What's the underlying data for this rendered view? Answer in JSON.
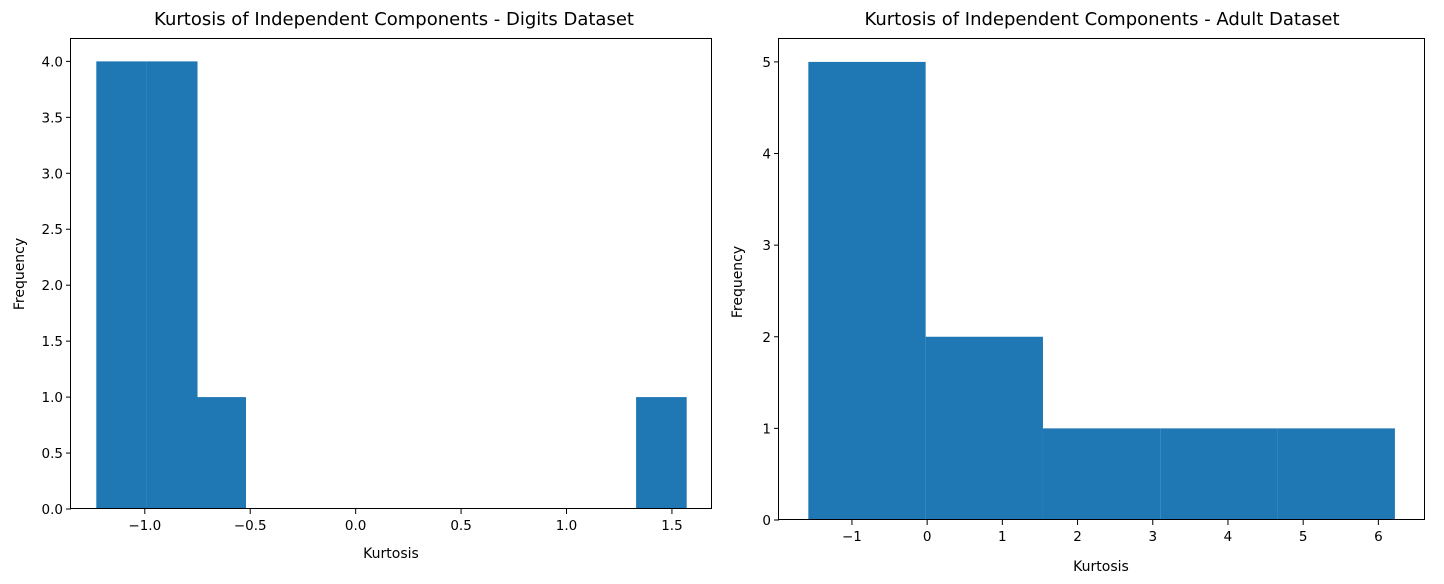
{
  "chart_data": [
    {
      "type": "bar",
      "title": "Kurtosis of Independent Components - Digits Dataset",
      "xlabel": "Kurtosis",
      "ylabel": "Frequency",
      "xlim": [
        -1.35,
        1.69
      ],
      "ylim": [
        0,
        4.2
      ],
      "xticks": [
        {
          "value": -1.0,
          "label": "−1.0"
        },
        {
          "value": -0.5,
          "label": "−0.5"
        },
        {
          "value": 0.0,
          "label": "0.0"
        },
        {
          "value": 0.5,
          "label": "0.5"
        },
        {
          "value": 1.0,
          "label": "1.0"
        },
        {
          "value": 1.5,
          "label": "1.5"
        }
      ],
      "yticks": [
        {
          "value": 0.0,
          "label": "0.0"
        },
        {
          "value": 0.5,
          "label": "0.5"
        },
        {
          "value": 1.0,
          "label": "1.0"
        },
        {
          "value": 1.5,
          "label": "1.5"
        },
        {
          "value": 2.0,
          "label": "2.0"
        },
        {
          "value": 2.5,
          "label": "2.5"
        },
        {
          "value": 3.0,
          "label": "3.0"
        },
        {
          "value": 3.5,
          "label": "3.5"
        },
        {
          "value": 4.0,
          "label": "4.0"
        }
      ],
      "bins": [
        {
          "x0": -1.23,
          "x1": -0.99,
          "value": 4
        },
        {
          "x0": -0.99,
          "x1": -0.75,
          "value": 4
        },
        {
          "x0": -0.75,
          "x1": -0.52,
          "value": 1
        },
        {
          "x0": 1.33,
          "x1": 1.57,
          "value": 1
        }
      ],
      "grid": false,
      "color": "#1f77b4"
    },
    {
      "type": "bar",
      "title": "Kurtosis of Independent Components - Adult Dataset",
      "xlabel": "Kurtosis",
      "ylabel": "Frequency",
      "xlim": [
        -1.97,
        6.62
      ],
      "ylim": [
        0,
        5.25
      ],
      "xticks": [
        {
          "value": -1,
          "label": "−1"
        },
        {
          "value": 0,
          "label": "0"
        },
        {
          "value": 1,
          "label": "1"
        },
        {
          "value": 2,
          "label": "2"
        },
        {
          "value": 3,
          "label": "3"
        },
        {
          "value": 4,
          "label": "4"
        },
        {
          "value": 5,
          "label": "5"
        },
        {
          "value": 6,
          "label": "6"
        }
      ],
      "yticks": [
        {
          "value": 0,
          "label": "0"
        },
        {
          "value": 1,
          "label": "1"
        },
        {
          "value": 2,
          "label": "2"
        },
        {
          "value": 3,
          "label": "3"
        },
        {
          "value": 4,
          "label": "4"
        },
        {
          "value": 5,
          "label": "5"
        }
      ],
      "bins": [
        {
          "x0": -1.58,
          "x1": -0.02,
          "value": 5
        },
        {
          "x0": -0.02,
          "x1": 1.54,
          "value": 2
        },
        {
          "x0": 1.54,
          "x1": 3.1,
          "value": 1
        },
        {
          "x0": 3.1,
          "x1": 4.66,
          "value": 1
        },
        {
          "x0": 4.66,
          "x1": 6.22,
          "value": 1
        }
      ],
      "grid": false,
      "color": "#1f77b4"
    }
  ]
}
